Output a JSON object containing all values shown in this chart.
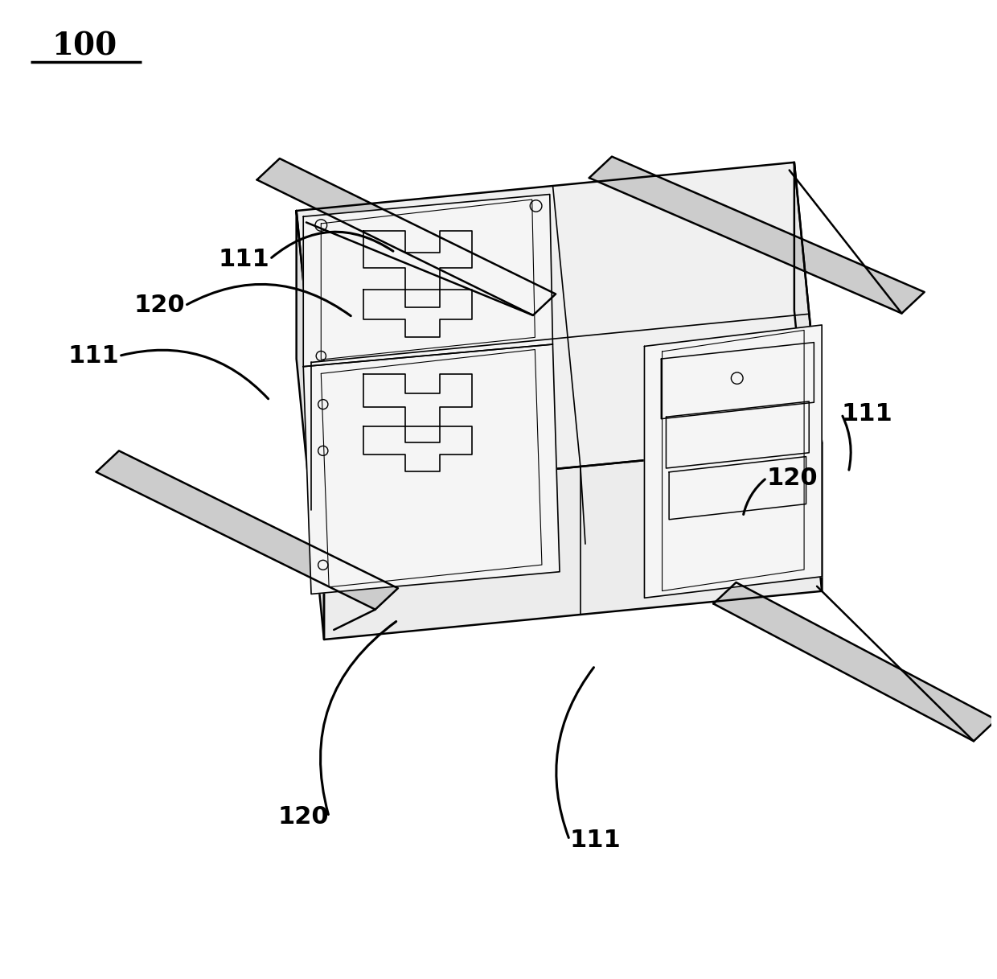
{
  "background_color": "#ffffff",
  "line_color": "#000000",
  "figsize": [
    12.4,
    12.17
  ],
  "dpi": 100,
  "struct_lw": 1.8,
  "thin_lw": 1.2,
  "annot_lw": 2.2,
  "label_fontsize": 22,
  "title_fontsize": 28,
  "rod_fill": "#cccccc",
  "panel_fill": "#f5f5f5",
  "top_face_fill": "#f0f0f0",
  "left_face_fill": "#e0e0e0",
  "right_face_fill": "#e8e8e8",
  "bottom_face_fill": "#ececec"
}
